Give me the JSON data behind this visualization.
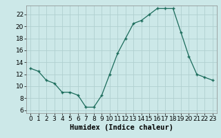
{
  "x": [
    0,
    1,
    2,
    3,
    4,
    5,
    6,
    7,
    8,
    9,
    10,
    11,
    12,
    13,
    14,
    15,
    16,
    17,
    18,
    19,
    20,
    21,
    22,
    23
  ],
  "y": [
    13,
    12.5,
    11,
    10.5,
    9,
    9,
    8.5,
    6.5,
    6.5,
    8.5,
    12,
    15.5,
    18,
    20.5,
    21,
    22,
    23,
    23,
    23,
    19,
    15,
    12,
    11.5,
    11
  ],
  "line_color": "#1a6b5a",
  "marker": "+",
  "marker_color": "#1a6b5a",
  "bg_color": "#cce8e8",
  "grid_color": "#b0d0d0",
  "xlabel": "Humidex (Indice chaleur)",
  "xlim": [
    -0.5,
    23.5
  ],
  "ylim": [
    5.5,
    23.5
  ],
  "yticks": [
    6,
    8,
    10,
    12,
    14,
    16,
    18,
    20,
    22
  ],
  "xticks": [
    0,
    1,
    2,
    3,
    4,
    5,
    6,
    7,
    8,
    9,
    10,
    11,
    12,
    13,
    14,
    15,
    16,
    17,
    18,
    19,
    20,
    21,
    22,
    23
  ],
  "xlabel_fontsize": 7.5,
  "tick_fontsize": 6.5
}
